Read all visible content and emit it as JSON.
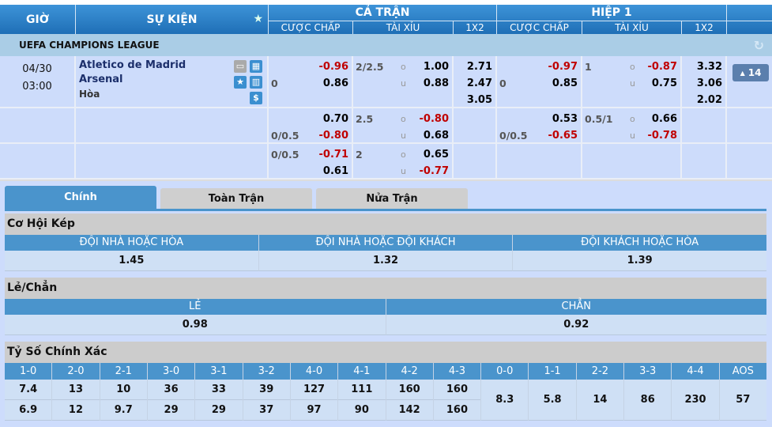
{
  "header": {
    "time": "GIỜ",
    "event": "SỰ KIỆN",
    "full_time": "CẢ TRẬN",
    "first_half": "HIỆP 1",
    "handicap": "CƯỢC CHẤP",
    "over_under": "TÀI XỈU",
    "x12": "1X2"
  },
  "league": "UEFA CHAMPIONS LEAGUE",
  "match": {
    "date": "04/30",
    "time": "03:00",
    "home": "Atletico de Madrid",
    "away": "Arsenal",
    "draw": "Hòa",
    "more_count": "14"
  },
  "rows": [
    {
      "ft": {
        "hdp": [
          [
            "",
            "-0.96"
          ],
          [
            "0",
            "0.86"
          ]
        ],
        "ou": [
          [
            "2/2.5",
            "o",
            "1.00"
          ],
          [
            "",
            "u",
            "0.88"
          ]
        ],
        "x12": [
          "2.71",
          "2.47",
          "3.05"
        ]
      },
      "h1": {
        "hdp": [
          [
            "",
            "-0.97"
          ],
          [
            "0",
            "0.85"
          ]
        ],
        "ou": [
          [
            "1",
            "o",
            "-0.87"
          ],
          [
            "",
            "u",
            "0.75"
          ]
        ],
        "x12": [
          "3.32",
          "3.06",
          "2.02"
        ]
      }
    },
    {
      "ft": {
        "hdp": [
          [
            "",
            "0.70"
          ],
          [
            "0/0.5",
            "-0.80"
          ]
        ],
        "ou": [
          [
            "2.5",
            "o",
            "-0.80"
          ],
          [
            "",
            "u",
            "0.68"
          ]
        ],
        "x12": []
      },
      "h1": {
        "hdp": [
          [
            "",
            "0.53"
          ],
          [
            "0/0.5",
            "-0.65"
          ]
        ],
        "ou": [
          [
            "0.5/1",
            "o",
            "0.66"
          ],
          [
            "",
            "u",
            "-0.78"
          ]
        ],
        "x12": []
      }
    },
    {
      "ft": {
        "hdp": [
          [
            "0/0.5",
            "-0.71"
          ],
          [
            "",
            "0.61"
          ]
        ],
        "ou": [
          [
            "2",
            "o",
            "0.65"
          ],
          [
            "",
            "u",
            "-0.77"
          ]
        ],
        "x12": []
      },
      "h1": {
        "hdp": [],
        "ou": [],
        "x12": []
      }
    }
  ],
  "tabs": [
    "Chính",
    "Toàn Trận",
    "Nửa Trận"
  ],
  "double_chance": {
    "title": "Cơ Hội Kép",
    "headers": [
      "ĐỘI NHÀ HOẶC HÒA",
      "ĐỘI NHÀ HOẶC ĐỘI KHÁCH",
      "ĐỘI KHÁCH HOẶC HÒA"
    ],
    "values": [
      "1.45",
      "1.32",
      "1.39"
    ]
  },
  "odd_even": {
    "title": "Lẻ/Chẳn",
    "headers": [
      "LẺ",
      "CHẲN"
    ],
    "values": [
      "0.98",
      "0.92"
    ]
  },
  "correct_score": {
    "title": "Tỷ Số Chính Xác",
    "pairs": [
      {
        "h": "1-0",
        "a": "7.4",
        "b": "6.9"
      },
      {
        "h": "2-0",
        "a": "13",
        "b": "12"
      },
      {
        "h": "2-1",
        "a": "10",
        "b": "9.7"
      },
      {
        "h": "3-0",
        "a": "36",
        "b": "29"
      },
      {
        "h": "3-1",
        "a": "33",
        "b": "29"
      },
      {
        "h": "3-2",
        "a": "39",
        "b": "37"
      },
      {
        "h": "4-0",
        "a": "127",
        "b": "97"
      },
      {
        "h": "4-1",
        "a": "111",
        "b": "90"
      },
      {
        "h": "4-2",
        "a": "160",
        "b": "142"
      },
      {
        "h": "4-3",
        "a": "160",
        "b": "160"
      }
    ],
    "singles": [
      {
        "h": "0-0",
        "v": "8.3"
      },
      {
        "h": "1-1",
        "v": "5.8"
      },
      {
        "h": "2-2",
        "v": "14"
      },
      {
        "h": "3-3",
        "v": "86"
      },
      {
        "h": "4-4",
        "v": "230"
      },
      {
        "h": "AOS",
        "v": "57"
      }
    ]
  },
  "colors": {
    "header": "#1f6fb6",
    "negative": "#c00000",
    "row_bg": "#cddcfb",
    "section_blue": "#4a94cc"
  }
}
